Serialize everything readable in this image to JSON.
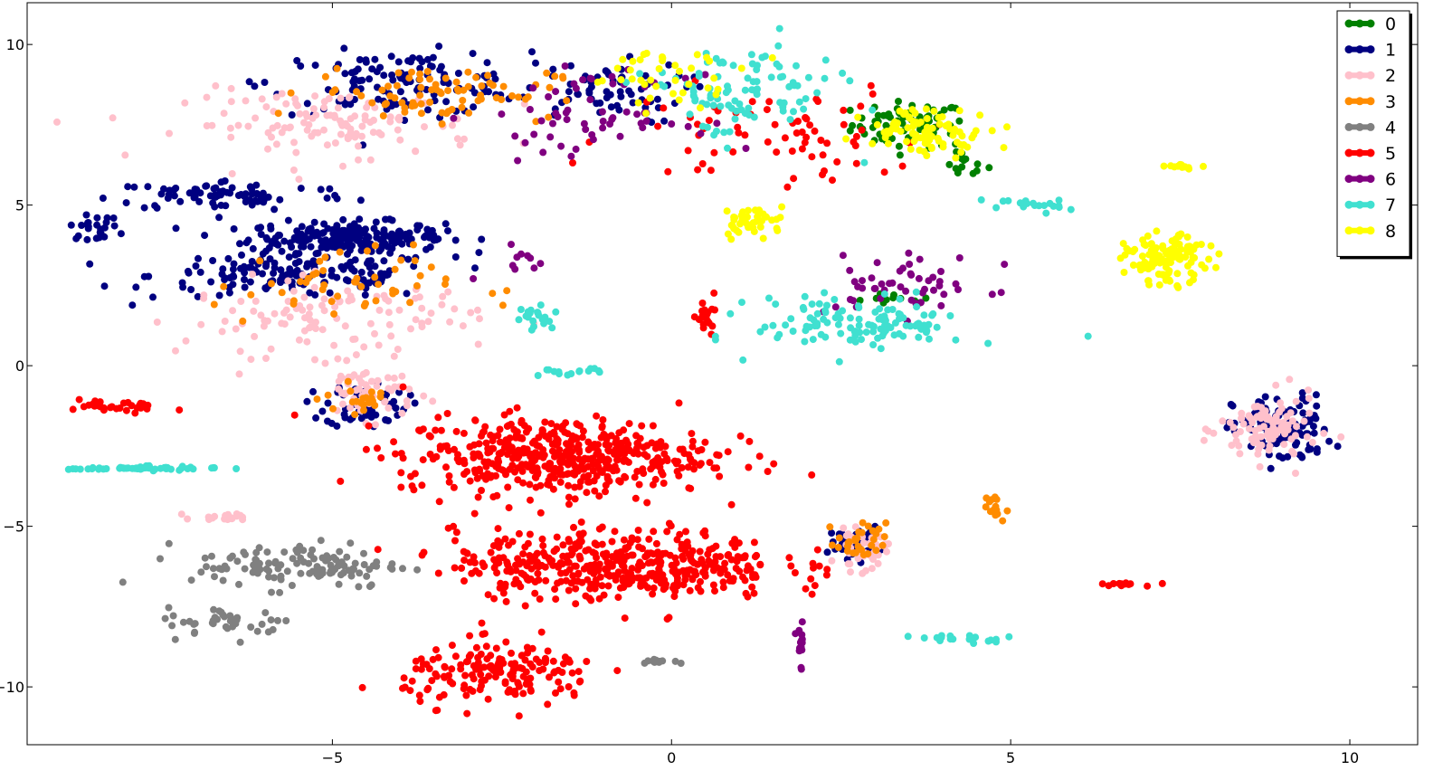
{
  "chart_data": {
    "type": "scatter",
    "title": "",
    "xlabel": "",
    "ylabel": "",
    "xlim": [
      -9.5,
      11
    ],
    "ylim": [
      -11.8,
      11.3
    ],
    "x_ticks": [
      -5,
      0,
      5,
      10
    ],
    "x_tick_labels": [
      "−5",
      "0",
      "5",
      "10"
    ],
    "y_ticks": [
      10,
      5,
      0,
      -5,
      -10
    ],
    "y_tick_labels": [
      "10",
      "5",
      "0",
      "−5",
      "−10"
    ],
    "grid": false,
    "legend_position": "top-right",
    "series": [
      {
        "name": "0",
        "color": "#008000",
        "clusters": [
          {
            "center": [
              3.5,
              7.5
            ],
            "spread": [
              0.7,
              0.6
            ],
            "n": 70
          },
          {
            "center": [
              4.3,
              6.3
            ],
            "spread": [
              0.3,
              0.4
            ],
            "n": 15
          },
          {
            "center": [
              3.3,
              2.0
            ],
            "spread": [
              0.5,
              0.2
            ],
            "n": 12
          }
        ]
      },
      {
        "name": "1",
        "color": "#000080",
        "clusters": [
          {
            "center": [
              -4.8,
              4.0
            ],
            "spread": [
              1.2,
              0.4
            ],
            "n": 220
          },
          {
            "center": [
              -5.5,
              2.8
            ],
            "spread": [
              1.8,
              0.6
            ],
            "n": 150
          },
          {
            "center": [
              -4.0,
              8.8
            ],
            "spread": [
              1.6,
              0.8
            ],
            "n": 130
          },
          {
            "center": [
              -6.5,
              5.3
            ],
            "spread": [
              1.5,
              0.4
            ],
            "n": 80
          },
          {
            "center": [
              -4.5,
              -1.2
            ],
            "spread": [
              0.5,
              0.6
            ],
            "n": 60
          },
          {
            "center": [
              -1.0,
              8.5
            ],
            "spread": [
              1.0,
              0.8
            ],
            "n": 60
          },
          {
            "center": [
              9.0,
              -2.0
            ],
            "spread": [
              0.6,
              0.9
            ],
            "n": 110
          },
          {
            "center": [
              2.7,
              -5.5
            ],
            "spread": [
              0.3,
              0.4
            ],
            "n": 40
          },
          {
            "center": [
              -8.5,
              4.3
            ],
            "spread": [
              0.3,
              0.3
            ],
            "n": 25
          }
        ]
      },
      {
        "name": "2",
        "color": "#ffc0cb",
        "clusters": [
          {
            "center": [
              -5.0,
              7.5
            ],
            "spread": [
              1.8,
              0.9
            ],
            "n": 120
          },
          {
            "center": [
              -5.0,
              1.5
            ],
            "spread": [
              1.8,
              1.0
            ],
            "n": 110
          },
          {
            "center": [
              -4.5,
              -0.8
            ],
            "spread": [
              0.6,
              0.7
            ],
            "n": 60
          },
          {
            "center": [
              8.8,
              -2.0
            ],
            "spread": [
              0.6,
              0.9
            ],
            "n": 100
          },
          {
            "center": [
              2.8,
              -5.8
            ],
            "spread": [
              0.3,
              0.5
            ],
            "n": 40
          },
          {
            "center": [
              -6.5,
              -4.7
            ],
            "spread": [
              0.4,
              0.1
            ],
            "n": 20
          }
        ]
      },
      {
        "name": "3",
        "color": "#ff8c00",
        "clusters": [
          {
            "center": [
              -3.5,
              8.5
            ],
            "spread": [
              1.5,
              0.7
            ],
            "n": 80
          },
          {
            "center": [
              -5.0,
              2.5
            ],
            "spread": [
              1.5,
              1.0
            ],
            "n": 50
          },
          {
            "center": [
              2.8,
              -5.5
            ],
            "spread": [
              0.3,
              0.5
            ],
            "n": 30
          },
          {
            "center": [
              4.7,
              -4.5
            ],
            "spread": [
              0.2,
              0.4
            ],
            "n": 15
          },
          {
            "center": [
              -4.5,
              -1.0
            ],
            "spread": [
              0.5,
              0.4
            ],
            "n": 20
          }
        ]
      },
      {
        "name": "4",
        "color": "#808080",
        "clusters": [
          {
            "center": [
              -5.5,
              -6.2
            ],
            "spread": [
              1.3,
              0.6
            ],
            "n": 120
          },
          {
            "center": [
              -6.5,
              -8.0
            ],
            "spread": [
              0.8,
              0.4
            ],
            "n": 40
          },
          {
            "center": [
              -0.2,
              -9.2
            ],
            "spread": [
              0.2,
              0.05
            ],
            "n": 15
          }
        ]
      },
      {
        "name": "5",
        "color": "#ff0000",
        "clusters": [
          {
            "center": [
              -1.7,
              -2.8
            ],
            "spread": [
              1.9,
              1.0
            ],
            "n": 480
          },
          {
            "center": [
              -0.8,
              -6.2
            ],
            "spread": [
              2.0,
              0.9
            ],
            "n": 450
          },
          {
            "center": [
              -2.5,
              -9.6
            ],
            "spread": [
              1.2,
              0.8
            ],
            "n": 170
          },
          {
            "center": [
              -8.2,
              -1.3
            ],
            "spread": [
              0.7,
              0.2
            ],
            "n": 30
          },
          {
            "center": [
              1.5,
              7.2
            ],
            "spread": [
              1.8,
              1.3
            ],
            "n": 70
          },
          {
            "center": [
              0.5,
              1.8
            ],
            "spread": [
              0.2,
              0.6
            ],
            "n": 20
          },
          {
            "center": [
              6.7,
              -6.8
            ],
            "spread": [
              0.3,
              0.05
            ],
            "n": 12
          }
        ]
      },
      {
        "name": "6",
        "color": "#800080",
        "clusters": [
          {
            "center": [
              -1.2,
              7.8
            ],
            "spread": [
              1.2,
              1.0
            ],
            "n": 60
          },
          {
            "center": [
              3.5,
              2.5
            ],
            "spread": [
              1.0,
              0.8
            ],
            "n": 50
          },
          {
            "center": [
              1.9,
              -8.6
            ],
            "spread": [
              0.05,
              0.6
            ],
            "n": 15
          },
          {
            "center": [
              -2.2,
              3.3
            ],
            "spread": [
              0.5,
              0.5
            ],
            "n": 10
          }
        ]
      },
      {
        "name": "7",
        "color": "#40e0d0",
        "clusters": [
          {
            "center": [
              1.0,
              8.5
            ],
            "spread": [
              1.2,
              1.2
            ],
            "n": 100
          },
          {
            "center": [
              2.8,
              1.3
            ],
            "spread": [
              1.3,
              0.7
            ],
            "n": 120
          },
          {
            "center": [
              -7.8,
              -3.2
            ],
            "spread": [
              0.9,
              0.05
            ],
            "n": 50
          },
          {
            "center": [
              4.3,
              -8.5
            ],
            "spread": [
              0.6,
              0.1
            ],
            "n": 20
          },
          {
            "center": [
              -2.0,
              1.5
            ],
            "spread": [
              0.3,
              0.5
            ],
            "n": 20
          },
          {
            "center": [
              5.2,
              5.0
            ],
            "spread": [
              0.5,
              0.2
            ],
            "n": 20
          },
          {
            "center": [
              -1.5,
              -0.2
            ],
            "spread": [
              0.4,
              0.1
            ],
            "n": 15
          }
        ]
      },
      {
        "name": "8",
        "color": "#ffff00",
        "clusters": [
          {
            "center": [
              7.3,
              3.3
            ],
            "spread": [
              0.5,
              0.6
            ],
            "n": 120
          },
          {
            "center": [
              3.8,
              7.3
            ],
            "spread": [
              0.8,
              0.6
            ],
            "n": 90
          },
          {
            "center": [
              1.2,
              4.5
            ],
            "spread": [
              0.4,
              0.4
            ],
            "n": 40
          },
          {
            "center": [
              0.0,
              9.0
            ],
            "spread": [
              1.0,
              0.7
            ],
            "n": 40
          },
          {
            "center": [
              7.5,
              6.2
            ],
            "spread": [
              0.3,
              0.05
            ],
            "n": 12
          }
        ]
      }
    ]
  }
}
